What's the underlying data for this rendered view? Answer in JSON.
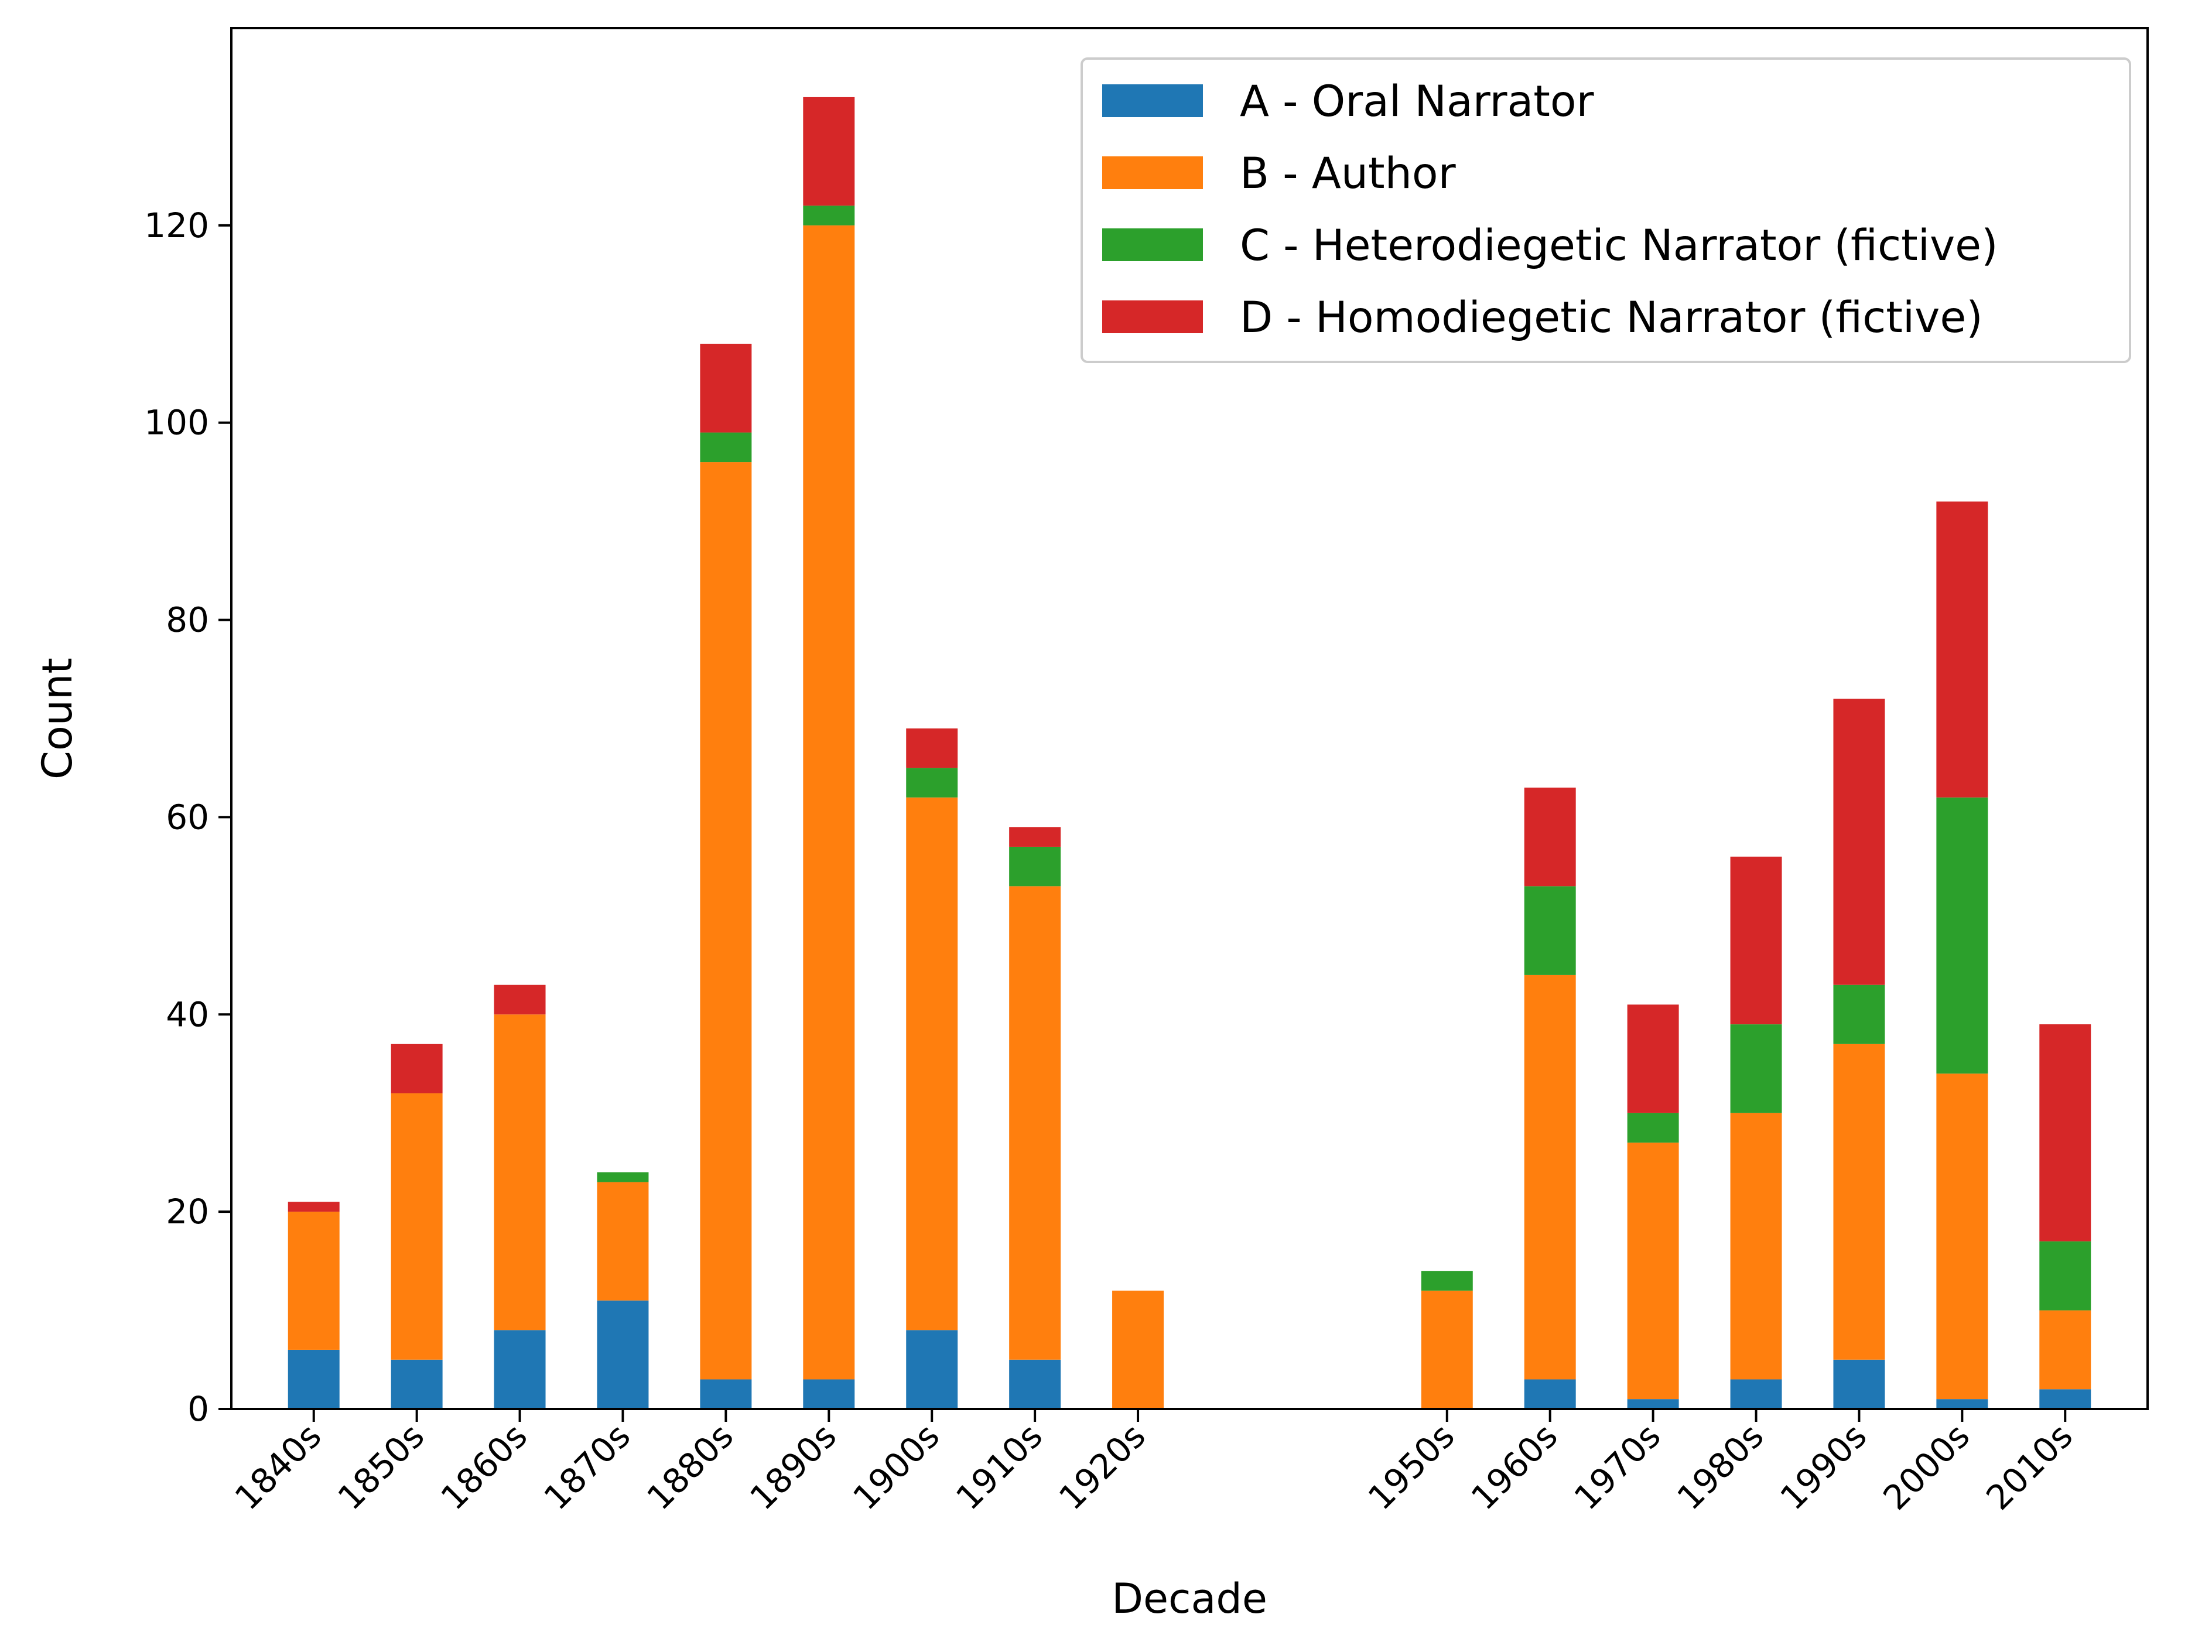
{
  "chart_data": {
    "type": "bar",
    "stacked": true,
    "title": "",
    "xlabel": "Decade",
    "ylabel": "Count",
    "ylim": [
      0,
      140
    ],
    "yticks": [
      0,
      20,
      40,
      60,
      80,
      100,
      120
    ],
    "grid": false,
    "legend_position": "top-right",
    "categories": [
      "1840s",
      "1850s",
      "1860s",
      "1870s",
      "1880s",
      "1890s",
      "1900s",
      "1910s",
      "1920s",
      "1950s",
      "1960s",
      "1970s",
      "1980s",
      "1990s",
      "2000s",
      "2010s"
    ],
    "x": [
      1840,
      1850,
      1860,
      1870,
      1880,
      1890,
      1900,
      1910,
      1920,
      1950,
      1960,
      1970,
      1980,
      1990,
      2000,
      2010
    ],
    "xlim": [
      1832,
      2018
    ],
    "series": [
      {
        "name": "A - Oral Narrator",
        "color": "#1f77b4",
        "values": [
          6,
          5,
          8,
          11,
          3,
          3,
          8,
          5,
          0,
          0,
          3,
          1,
          3,
          5,
          1,
          2
        ]
      },
      {
        "name": "B - Author",
        "color": "#ff7f0e",
        "values": [
          14,
          27,
          32,
          12,
          93,
          117,
          54,
          48,
          12,
          12,
          41,
          26,
          27,
          32,
          33,
          8
        ]
      },
      {
        "name": "C - Heterodiegetic Narrator (fictive)",
        "color": "#2ca02c",
        "values": [
          0,
          0,
          0,
          1,
          3,
          2,
          3,
          4,
          0,
          2,
          9,
          3,
          9,
          6,
          28,
          7
        ]
      },
      {
        "name": "D - Homodiegetic Narrator (fictive)",
        "color": "#d62728",
        "values": [
          1,
          5,
          3,
          0,
          9,
          11,
          4,
          2,
          0,
          0,
          10,
          11,
          17,
          29,
          30,
          22
        ]
      }
    ]
  }
}
